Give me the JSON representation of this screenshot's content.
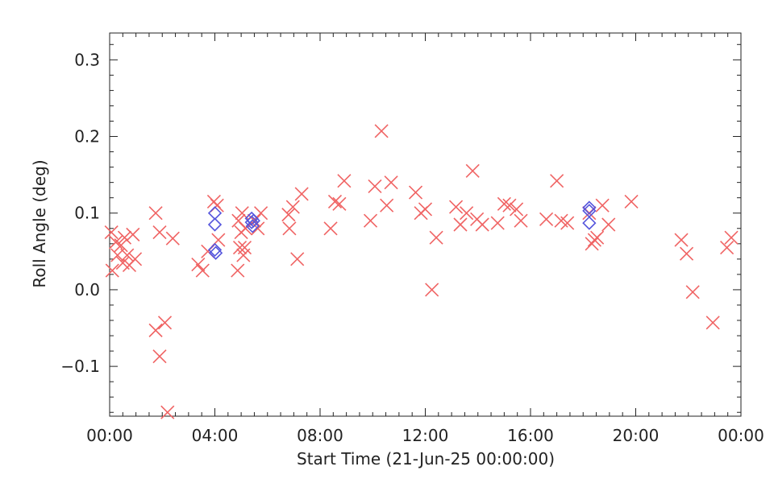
{
  "chart_data": {
    "type": "scatter",
    "xlabel": "Start Time (21-Jun-25 00:00:00)",
    "ylabel": "Roll Angle (deg)",
    "xlim": [
      "00:00",
      "24:00"
    ],
    "ylim": [
      -0.165,
      0.335
    ],
    "x_ticks": [
      "00:00",
      "04:00",
      "08:00",
      "12:00",
      "16:00",
      "20:00",
      "00:00"
    ],
    "y_ticks": [
      "-0.1",
      "0.0",
      "0.1",
      "0.2",
      "0.3"
    ],
    "series": [
      {
        "marker": "x",
        "color": "#f06464",
        "points": [
          [
            "00:04",
            0.075
          ],
          [
            "00:06",
            0.025
          ],
          [
            "00:14",
            0.062
          ],
          [
            "00:18",
            0.045
          ],
          [
            "00:26",
            0.058
          ],
          [
            "00:30",
            0.035
          ],
          [
            "00:34",
            0.068
          ],
          [
            "00:40",
            0.045
          ],
          [
            "00:45",
            0.032
          ],
          [
            "00:53",
            0.072
          ],
          [
            "00:58",
            0.04
          ],
          [
            "01:45",
            0.1
          ],
          [
            "01:45",
            -0.053
          ],
          [
            "01:54",
            0.075
          ],
          [
            "01:54",
            -0.087
          ],
          [
            "02:06",
            -0.043
          ],
          [
            "02:12",
            -0.16
          ],
          [
            "02:24",
            0.067
          ],
          [
            "03:22",
            0.033
          ],
          [
            "03:32",
            0.025
          ],
          [
            "03:44",
            0.05
          ],
          [
            "03:58",
            0.115
          ],
          [
            "04:05",
            0.11
          ],
          [
            "04:08",
            0.065
          ],
          [
            "04:52",
            0.025
          ],
          [
            "04:54",
            0.09
          ],
          [
            "04:57",
            0.055
          ],
          [
            "05:00",
            0.075
          ],
          [
            "05:02",
            0.1
          ],
          [
            "05:05",
            0.045
          ],
          [
            "05:08",
            0.055
          ],
          [
            "05:10",
            0.08
          ],
          [
            "05:30",
            0.09
          ],
          [
            "05:38",
            0.08
          ],
          [
            "05:45",
            0.1
          ],
          [
            "06:48",
            0.098
          ],
          [
            "06:50",
            0.08
          ],
          [
            "06:58",
            0.108
          ],
          [
            "07:08",
            0.04
          ],
          [
            "07:18",
            0.125
          ],
          [
            "08:24",
            0.08
          ],
          [
            "08:34",
            0.115
          ],
          [
            "08:44",
            0.112
          ],
          [
            "08:55",
            0.142
          ],
          [
            "09:55",
            0.09
          ],
          [
            "10:05",
            0.135
          ],
          [
            "10:20",
            0.207
          ],
          [
            "10:32",
            0.11
          ],
          [
            "10:42",
            0.14
          ],
          [
            "11:38",
            0.127
          ],
          [
            "11:50",
            0.1
          ],
          [
            "12:00",
            0.105
          ],
          [
            "12:15",
            0.0
          ],
          [
            "12:25",
            0.068
          ],
          [
            "13:10",
            0.108
          ],
          [
            "13:20",
            0.085
          ],
          [
            "13:34",
            0.1
          ],
          [
            "13:48",
            0.155
          ],
          [
            "13:58",
            0.092
          ],
          [
            "14:10",
            0.085
          ],
          [
            "14:45",
            0.087
          ],
          [
            "15:00",
            0.112
          ],
          [
            "15:12",
            0.11
          ],
          [
            "15:28",
            0.105
          ],
          [
            "15:38",
            0.09
          ],
          [
            "16:36",
            0.092
          ],
          [
            "17:00",
            0.142
          ],
          [
            "17:10",
            0.09
          ],
          [
            "17:24",
            0.087
          ],
          [
            "18:14",
            0.1
          ],
          [
            "18:20",
            0.06
          ],
          [
            "18:26",
            0.065
          ],
          [
            "18:32",
            0.068
          ],
          [
            "18:44",
            0.11
          ],
          [
            "18:58",
            0.085
          ],
          [
            "19:50",
            0.115
          ],
          [
            "21:44",
            0.065
          ],
          [
            "21:56",
            0.047
          ],
          [
            "22:10",
            -0.003
          ],
          [
            "22:56",
            -0.043
          ],
          [
            "23:28",
            0.055
          ],
          [
            "23:38",
            0.068
          ]
        ]
      },
      {
        "marker": "diamond",
        "color": "#5555dd",
        "points": [
          [
            "04:00",
            0.1
          ],
          [
            "04:00",
            0.085
          ],
          [
            "04:00",
            0.052
          ],
          [
            "04:02",
            0.048
          ],
          [
            "05:24",
            0.093
          ],
          [
            "05:24",
            0.088
          ],
          [
            "05:26",
            0.083
          ],
          [
            "05:28",
            0.09
          ],
          [
            "18:14",
            0.107
          ],
          [
            "18:14",
            0.103
          ],
          [
            "18:14",
            0.087
          ]
        ]
      }
    ]
  }
}
